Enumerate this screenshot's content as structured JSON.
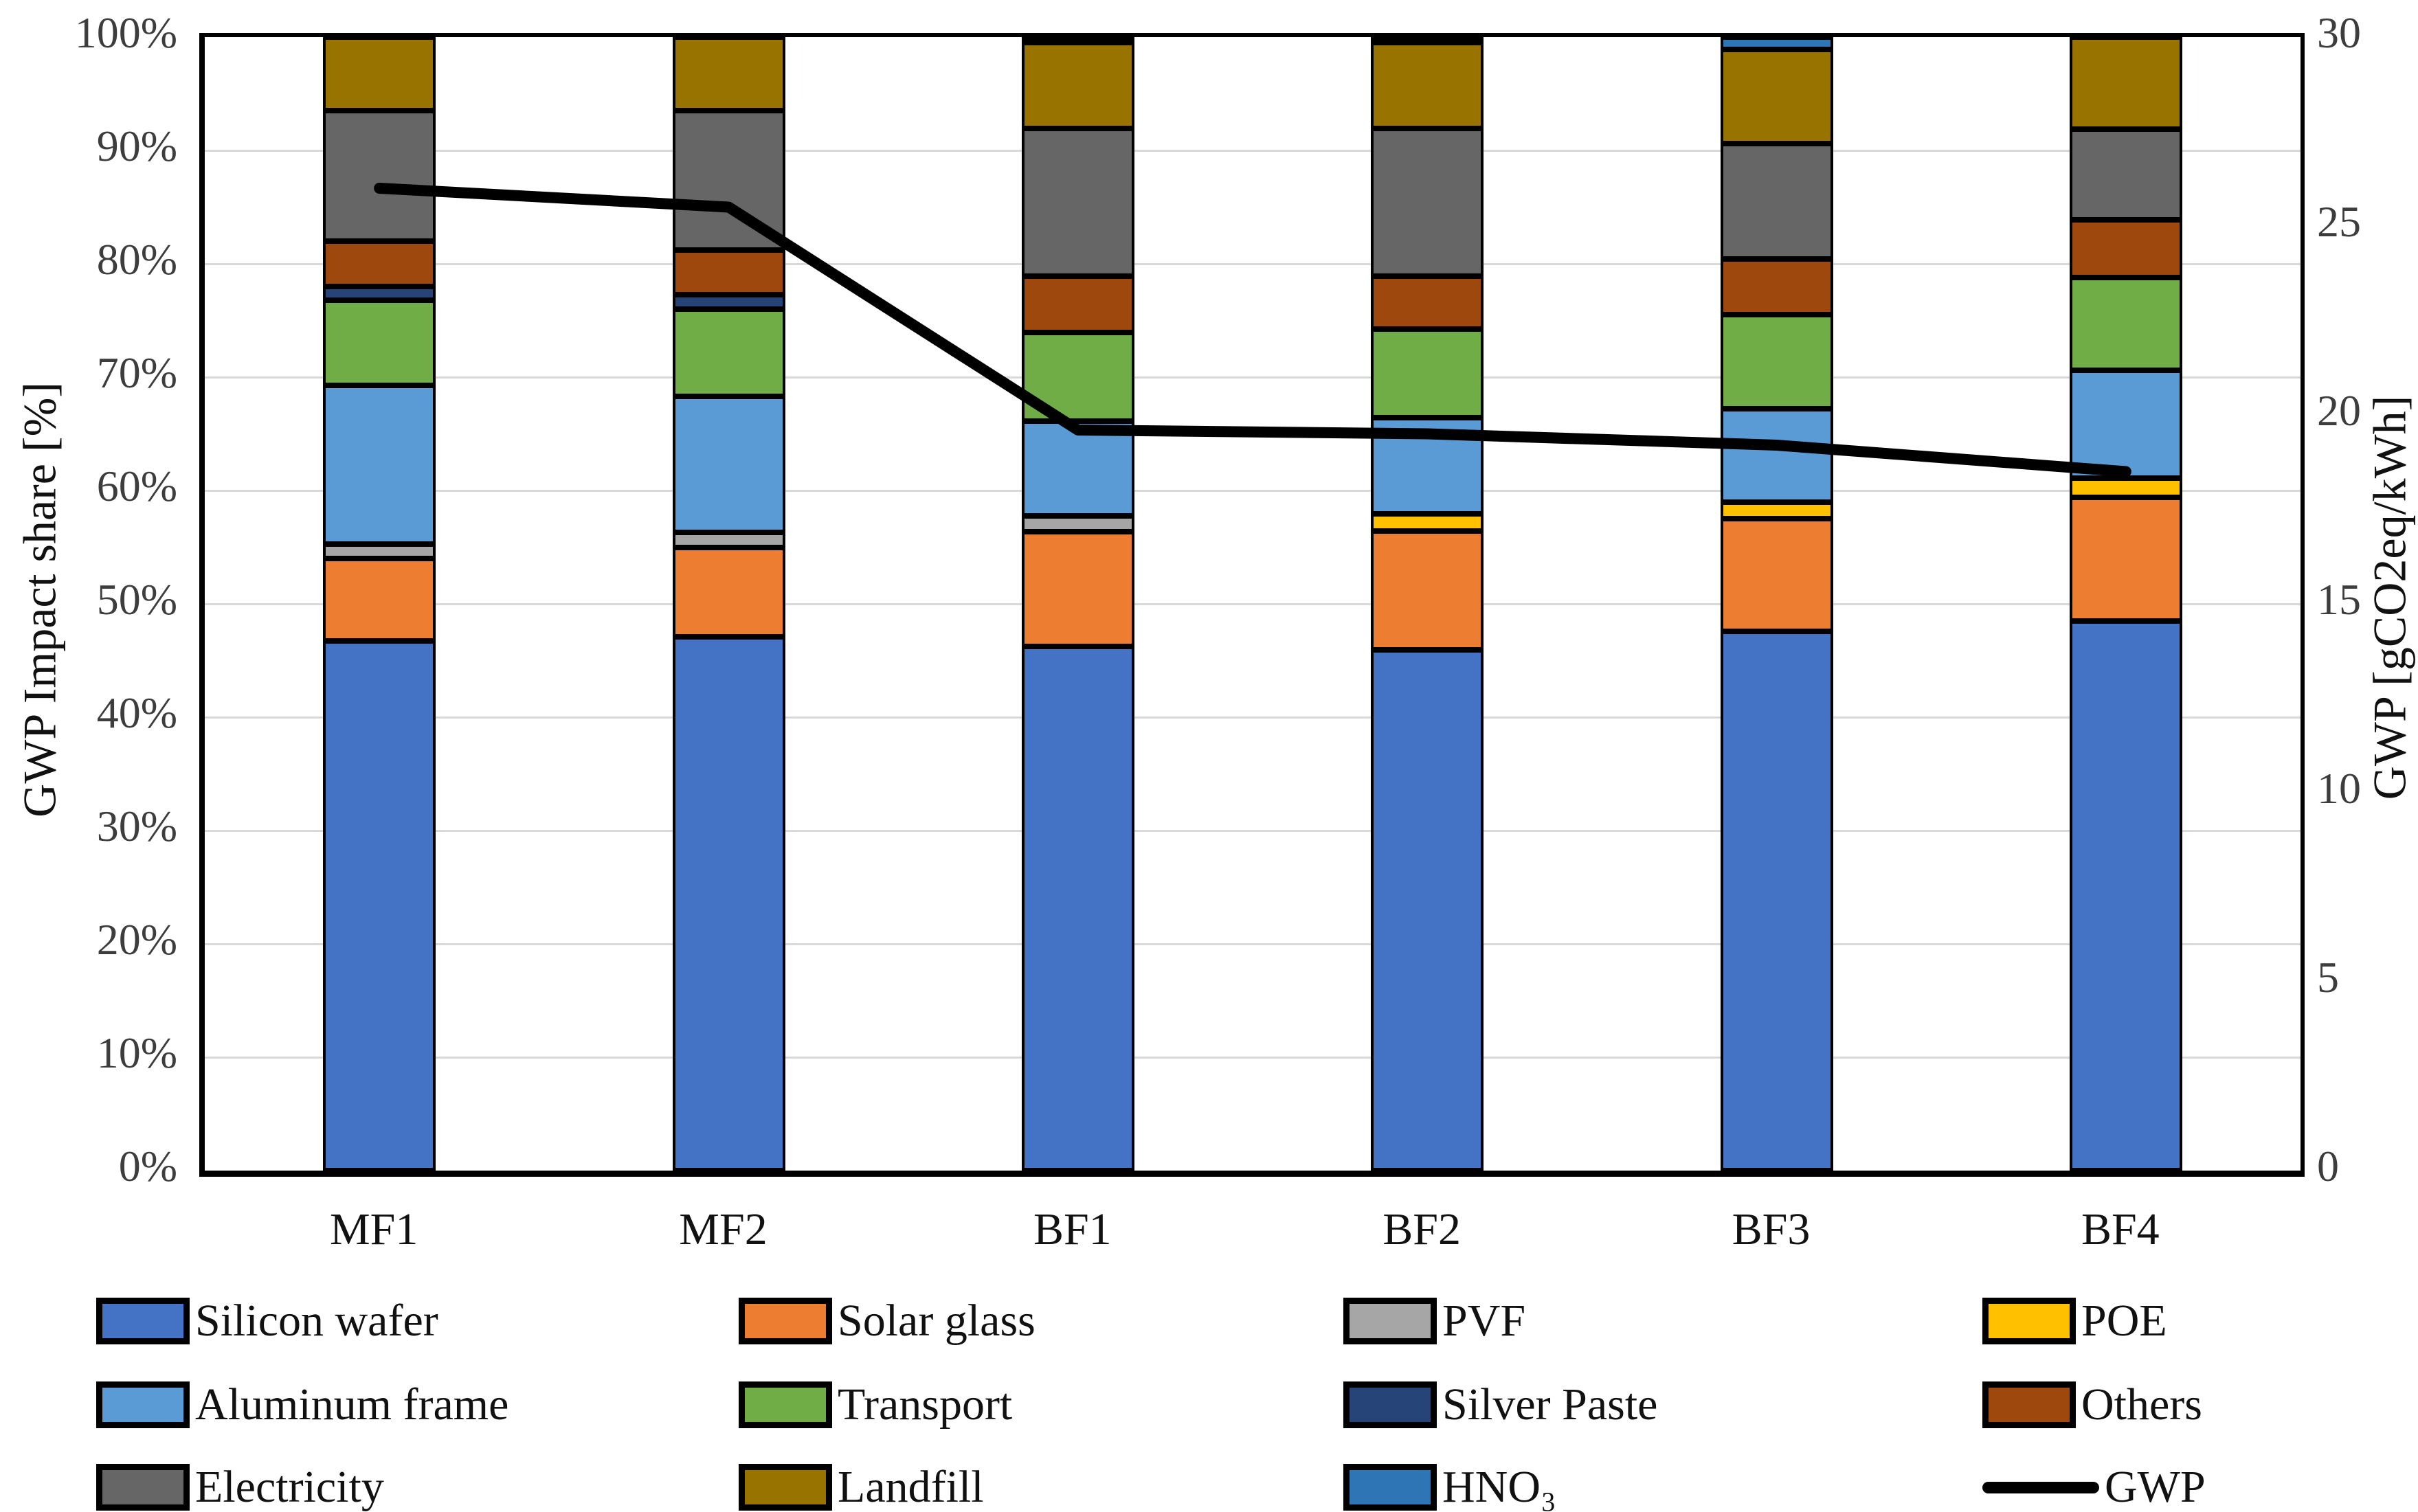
{
  "chart_data": {
    "type": "bar",
    "subtype": "stacked-percent-bars-with-line-overlay",
    "categories": [
      "MF1",
      "MF2",
      "BF1",
      "BF2",
      "BF3",
      "BF4"
    ],
    "left_axis": {
      "label": "GWP Impact share [%]",
      "tick_labels": [
        "0%",
        "10%",
        "20%",
        "30%",
        "40%",
        "50%",
        "60%",
        "70%",
        "80%",
        "90%",
        "100%"
      ],
      "min": 0,
      "max": 100,
      "gridlines": true
    },
    "right_axis": {
      "label": "GWP [gCO2eq/kWh]",
      "tick_labels": [
        "0",
        "5",
        "10",
        "15",
        "20",
        "25",
        "30"
      ],
      "min": 0,
      "max": 30
    },
    "series": [
      {
        "name": "Silicon wafer",
        "color": "#4472C4",
        "swatch": "box"
      },
      {
        "name": "Solar glass",
        "color": "#ED7D31",
        "swatch": "box"
      },
      {
        "name": "PVF",
        "color": "#A6A6A6",
        "swatch": "box"
      },
      {
        "name": "POE",
        "color": "#FFC000",
        "swatch": "box"
      },
      {
        "name": "Aluminum frame",
        "color": "#5B9BD5",
        "swatch": "box"
      },
      {
        "name": "Transport",
        "color": "#70AD47",
        "swatch": "box"
      },
      {
        "name": "Silver Paste",
        "color": "#264478",
        "swatch": "box"
      },
      {
        "name": "Others",
        "color": "#9E480E",
        "swatch": "box"
      },
      {
        "name": "Electricity",
        "color": "#666666",
        "swatch": "box"
      },
      {
        "name": "Landfill",
        "color": "#997300",
        "swatch": "box"
      },
      {
        "name": "HNO₃",
        "color": "#2E75B6",
        "swatch": "box"
      },
      {
        "name": "GWP",
        "color": "#000000",
        "swatch": "line"
      }
    ],
    "bars": [
      {
        "category": "MF1",
        "segments": [
          {
            "series": "Silicon wafer",
            "value": 46.7
          },
          {
            "series": "Solar glass",
            "value": 7.3
          },
          {
            "series": "PVF",
            "value": 1.3
          },
          {
            "series": "Aluminum frame",
            "value": 14.0
          },
          {
            "series": "Transport",
            "value": 7.5
          },
          {
            "series": "Silver Paste",
            "value": 1.2
          },
          {
            "series": "Others",
            "value": 4.0
          },
          {
            "series": "Electricity",
            "value": 11.5
          },
          {
            "series": "Landfill",
            "value": 6.5
          }
        ]
      },
      {
        "category": "MF2",
        "segments": [
          {
            "series": "Silicon wafer",
            "value": 47.1
          },
          {
            "series": "Solar glass",
            "value": 7.9
          },
          {
            "series": "PVF",
            "value": 1.3
          },
          {
            "series": "Aluminum frame",
            "value": 12.0
          },
          {
            "series": "Transport",
            "value": 7.7
          },
          {
            "series": "Silver Paste",
            "value": 1.3
          },
          {
            "series": "Others",
            "value": 3.9
          },
          {
            "series": "Electricity",
            "value": 12.3
          },
          {
            "series": "Landfill",
            "value": 6.5
          }
        ]
      },
      {
        "category": "BF1",
        "segments": [
          {
            "series": "Silicon wafer",
            "value": 46.3
          },
          {
            "series": "Solar glass",
            "value": 10.1
          },
          {
            "series": "PVF",
            "value": 1.4
          },
          {
            "series": "Aluminum frame",
            "value": 8.4
          },
          {
            "series": "Transport",
            "value": 7.8
          },
          {
            "series": "Others",
            "value": 5.0
          },
          {
            "series": "Electricity",
            "value": 13.0
          },
          {
            "series": "Landfill",
            "value": 7.6
          },
          {
            "series": "Silver Paste",
            "value": 0.4
          }
        ]
      },
      {
        "category": "BF2",
        "segments": [
          {
            "series": "Silicon wafer",
            "value": 46.0
          },
          {
            "series": "Solar glass",
            "value": 10.5
          },
          {
            "series": "POE",
            "value": 1.5
          },
          {
            "series": "Aluminum frame",
            "value": 8.5
          },
          {
            "series": "Transport",
            "value": 7.8
          },
          {
            "series": "Others",
            "value": 4.7
          },
          {
            "series": "Electricity",
            "value": 13.0
          },
          {
            "series": "Landfill",
            "value": 7.6
          },
          {
            "series": "Silver Paste",
            "value": 0.4
          }
        ]
      },
      {
        "category": "BF3",
        "segments": [
          {
            "series": "Silicon wafer",
            "value": 47.6
          },
          {
            "series": "Solar glass",
            "value": 9.9
          },
          {
            "series": "POE",
            "value": 1.5
          },
          {
            "series": "Aluminum frame",
            "value": 8.2
          },
          {
            "series": "Transport",
            "value": 8.3
          },
          {
            "series": "Others",
            "value": 4.9
          },
          {
            "series": "Electricity",
            "value": 10.2
          },
          {
            "series": "Landfill",
            "value": 8.3
          },
          {
            "series": "HNO₃",
            "value": 1.1
          }
        ]
      },
      {
        "category": "BF4",
        "segments": [
          {
            "series": "Silicon wafer",
            "value": 48.5
          },
          {
            "series": "Solar glass",
            "value": 10.9
          },
          {
            "series": "POE",
            "value": 1.7
          },
          {
            "series": "Aluminum frame",
            "value": 9.5
          },
          {
            "series": "Transport",
            "value": 8.2
          },
          {
            "series": "Others",
            "value": 5.1
          },
          {
            "series": "Electricity",
            "value": 8.0
          },
          {
            "series": "Landfill",
            "value": 8.1
          }
        ]
      }
    ],
    "line_series": {
      "name": "GWP",
      "axis": "right",
      "color": "#000000",
      "values": [
        26.0,
        25.5,
        19.6,
        19.5,
        19.2,
        18.5
      ]
    },
    "legend_rows": [
      [
        "Silicon wafer",
        "Solar glass",
        "PVF",
        "POE"
      ],
      [
        "Aluminum frame",
        "Transport",
        "Silver Paste",
        "Others"
      ],
      [
        "Electricity",
        "Landfill",
        "HNO₃",
        "GWP"
      ]
    ],
    "layout_hints": {
      "legend_position": "bottom",
      "grid": "horizontal-light-gray",
      "bar_outline": "#000000",
      "background": "#FFFFFF"
    }
  }
}
